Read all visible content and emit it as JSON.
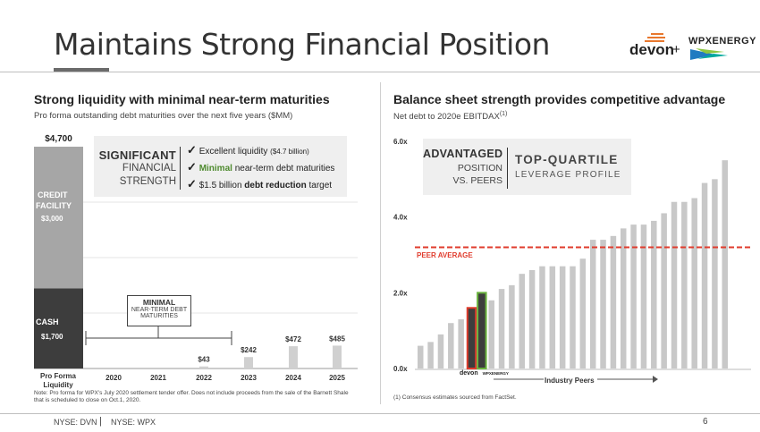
{
  "header": {
    "title": "Maintains Strong Financial Position",
    "logo_devon": "devon",
    "logo_plus": "+",
    "logo_wpx": "WPXENERGY"
  },
  "left": {
    "title": "Strong liquidity with minimal near-term maturities",
    "subtitle": "Pro forma outstanding debt maturities over the next five years ($MM)",
    "callout": {
      "line1": "SIGNIFICANT",
      "line2": "FINANCIAL",
      "line3": "STRENGTH",
      "bullets": [
        {
          "pre": "Excellent liquidity ",
          "bold": "",
          "post": "",
          "small": "($4.7 billion)"
        },
        {
          "pre": "",
          "bold": "Minimal",
          "post": " near-term debt maturities",
          "small": ""
        },
        {
          "pre": "$1.5 billion ",
          "bold": "debt reduction",
          "post": " target",
          "small": ""
        }
      ],
      "check": "✓"
    },
    "minimal_box": {
      "line1": "MINIMAL",
      "line2": "NEAR-TERM DEBT",
      "line3": "MATURITIES"
    },
    "note": "Note: Pro forma for WPX's July 2020 settlement tender offer. Does not include proceeds from the sale of the Barnett Shale that is scheduled to close on Oct.1, 2020."
  },
  "right": {
    "title": "Balance sheet strength provides competitive advantage",
    "subtitle": "Net debt to 2020e EBITDAX",
    "subtitle_sup": "(1)",
    "adv": {
      "line1": "ADVANTAGED",
      "line2": "POSITION",
      "line3": "VS. PEERS"
    },
    "topq": {
      "line1": "TOP-QUARTILE",
      "line2": "LEVERAGE PROFILE"
    },
    "peer_label": "PEER AVERAGE",
    "footnote": "(1) Consensus estimates sourced from FactSet.",
    "industry_label": "Industry Peers",
    "logo_devon": "devon",
    "logo_wpx": "WPXENERGY"
  },
  "footer": {
    "ticker1": "NYSE: DVN",
    "sep": "|",
    "ticker2": "NYSE: WPX",
    "page": "6"
  },
  "chart_data": [
    {
      "type": "bar",
      "categories": [
        "Pro Forma Liquidity",
        "2020",
        "2021",
        "2022",
        "2023",
        "2024",
        "2025"
      ],
      "liquidity": {
        "total_label": "$4,700",
        "total": 4700,
        "segments": [
          {
            "name": "CASH",
            "value": 1700,
            "label": "$1,700",
            "color": "#3d3d3d"
          },
          {
            "name": "CREDIT FACILITY",
            "value": 3000,
            "label": "$3,000",
            "color": "#a6a6a6"
          }
        ]
      },
      "values": [
        null,
        0,
        0,
        43,
        242,
        472,
        485
      ],
      "value_labels": [
        "",
        "",
        "",
        "$43",
        "$242",
        "$472",
        "$485"
      ],
      "ylim": [
        0,
        4700
      ],
      "bar_color": "#d0d0d0"
    },
    {
      "type": "bar",
      "title": "",
      "yticks": [
        "0.0x",
        "2.0x",
        "4.0x",
        "6.0x"
      ],
      "ylim": [
        0,
        6.0
      ],
      "peer_average": 3.2,
      "highlight": [
        {
          "index": 5,
          "value": 1.6,
          "border": "#e03c2d"
        },
        {
          "index": 6,
          "value": 2.0,
          "border": "#6ab23e"
        }
      ],
      "values": [
        0.6,
        0.7,
        0.9,
        1.2,
        1.3,
        1.6,
        2.0,
        1.8,
        2.1,
        2.2,
        2.5,
        2.6,
        2.7,
        2.7,
        2.7,
        2.7,
        2.9,
        3.4,
        3.4,
        3.5,
        3.7,
        3.8,
        3.8,
        3.9,
        4.1,
        4.4,
        4.4,
        4.5,
        4.9,
        5.0,
        5.5
      ],
      "bar_color": "#c8c8c8",
      "peer_color": "#e03c2d"
    }
  ]
}
